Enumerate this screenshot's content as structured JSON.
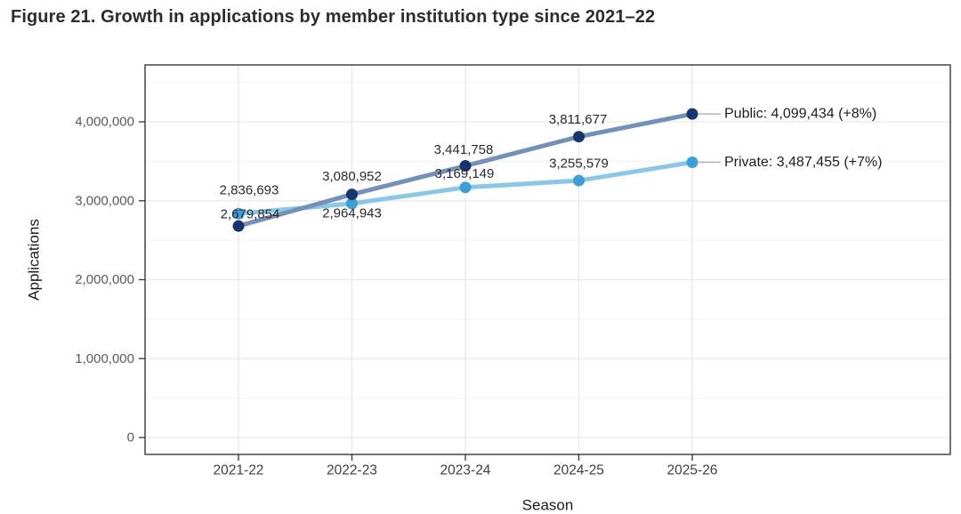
{
  "chart_data": {
    "type": "line",
    "title": "Figure 21. Growth in applications by member institution type since 2021–22",
    "xlabel": "Season",
    "ylabel": "Applications",
    "categories": [
      "2021-22",
      "2022-23",
      "2023-24",
      "2024-25",
      "2025-26"
    ],
    "y_ticks": [
      {
        "value": 0,
        "label": "0"
      },
      {
        "value": 1000000,
        "label": "1,000,000"
      },
      {
        "value": 2000000,
        "label": "2,000,000"
      },
      {
        "value": 3000000,
        "label": "3,000,000"
      },
      {
        "value": 4000000,
        "label": "4,000,000"
      }
    ],
    "ylim": [
      -210000,
      4720000
    ],
    "grid": {
      "major": true,
      "minor_horizontal": true,
      "minor_step": 500000
    },
    "legend_position": "right-annotations",
    "series": [
      {
        "name": "Private",
        "line_color": "#8bc7e7",
        "point_color": "#3e9fd6",
        "values": [
          2836693,
          2964943,
          3169149,
          3255579,
          3487455
        ],
        "point_labels": [
          "2,836,693",
          "2,964,943",
          "3,169,149",
          "3,255,579",
          null
        ],
        "label_offsets": [
          [
            12,
            -26
          ],
          [
            0,
            11
          ],
          [
            -1,
            -15
          ],
          [
            0,
            -19
          ],
          null
        ],
        "annotation": "Private: 3,487,455 (+7%)"
      },
      {
        "name": "Public",
        "line_color": "#7590b6",
        "point_color": "#16356d",
        "values": [
          2679854,
          3080952,
          3441758,
          3811677,
          4099434
        ],
        "point_labels": [
          "2,679,854",
          "3,080,952",
          "3,441,758",
          "3,811,677",
          null
        ],
        "label_offsets": [
          [
            13,
            -13
          ],
          [
            0,
            -20
          ],
          [
            -2,
            -18
          ],
          [
            -1,
            -19
          ],
          null
        ],
        "annotation": "Public: 4,099,434 (+8%)"
      }
    ],
    "colors": {
      "panel_border": "#454545",
      "major_grid": "#e9e9e9",
      "minor_grid": "#f2f2f2",
      "tick_mark": "#333333",
      "x_tick_label": "#3f3f3f",
      "y_tick_label": "#5a5a5a",
      "axis_title": "#1c1c1c",
      "point_label": "#2b2b2b",
      "annotation_text": "#1f1f1f",
      "leader_line": "#b5b5b5"
    }
  }
}
